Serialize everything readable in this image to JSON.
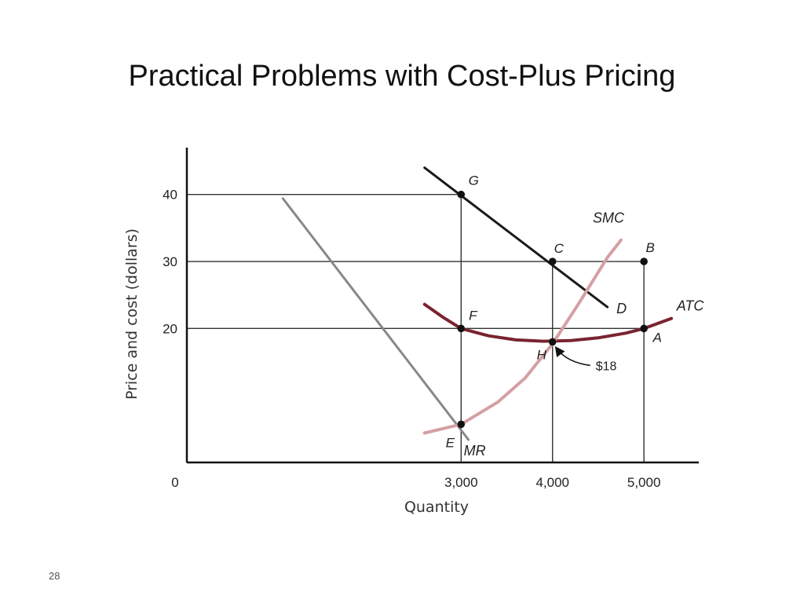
{
  "slide": {
    "title": "Practical Problems with Cost-Plus Pricing",
    "page_number": "28"
  },
  "chart_data": {
    "type": "line",
    "title": "",
    "xlabel": "Quantity",
    "ylabel": "Price and cost (dollars)",
    "xlim": [
      0,
      5600
    ],
    "ylim": [
      0,
      47
    ],
    "x_ticks": [
      {
        "value": 0,
        "label": "0"
      },
      {
        "value": 3000,
        "label": "3,000"
      },
      {
        "value": 4000,
        "label": "4,000"
      },
      {
        "value": 5000,
        "label": "5,000"
      }
    ],
    "y_ticks": [
      {
        "value": 20,
        "label": "20"
      },
      {
        "value": 30,
        "label": "30"
      },
      {
        "value": 40,
        "label": "40"
      }
    ],
    "grid": false,
    "colors": {
      "D": "#1a1a1a",
      "MR": "#888888",
      "ATC": "#7a2430",
      "SMC": "#d4a0a4",
      "guides": "#333333",
      "axis": "#111111"
    },
    "series": [
      {
        "name": "D",
        "x": [
          2600,
          4600
        ],
        "y": [
          44,
          23.2
        ]
      },
      {
        "name": "MR",
        "x": [
          1050,
          3080
        ],
        "y": [
          39.4,
          3.4
        ]
      },
      {
        "name": "ATC",
        "x": [
          2600,
          2800,
          3000,
          3300,
          3600,
          3900,
          4200,
          4500,
          4800,
          5000,
          5300
        ],
        "y": [
          23.6,
          21.7,
          20,
          18.9,
          18.3,
          18.1,
          18.2,
          18.6,
          19.3,
          20,
          21.5
        ]
      },
      {
        "name": "SMC",
        "x": [
          2600,
          3000,
          3400,
          3700,
          4000,
          4300,
          4600,
          4750
        ],
        "y": [
          4.4,
          5.7,
          9,
          12.6,
          17.7,
          24,
          30.6,
          33.2
        ]
      }
    ],
    "points": [
      {
        "label": "G",
        "x": 3000,
        "y": 40
      },
      {
        "label": "C",
        "x": 4000,
        "y": 30
      },
      {
        "label": "B",
        "x": 5000,
        "y": 30
      },
      {
        "label": "F",
        "x": 3000,
        "y": 20
      },
      {
        "label": "A",
        "x": 5000,
        "y": 20
      },
      {
        "label": "H",
        "x": 4000,
        "y": 18
      },
      {
        "label": "E",
        "x": 3000,
        "y": 5.7
      }
    ],
    "annotations": [
      {
        "text": "$18",
        "points_to": "H"
      }
    ]
  }
}
